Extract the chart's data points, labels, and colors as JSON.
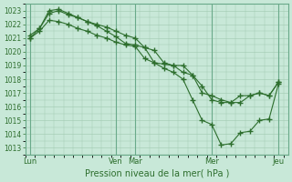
{
  "xlabel": "Pression niveau de la mer( hPa )",
  "bg_color": "#c8e8d8",
  "grid_color": "#a0c8b0",
  "line_color": "#2d6e2d",
  "ylim": [
    1012.5,
    1023.5
  ],
  "yticks": [
    1013,
    1014,
    1015,
    1016,
    1017,
    1018,
    1019,
    1020,
    1021,
    1022,
    1023
  ],
  "xtick_labels": [
    "Lun",
    "Ven",
    "Mar",
    "Mer",
    "Jeu"
  ],
  "xtick_positions": [
    0,
    9,
    11,
    19,
    26
  ],
  "vline_positions": [
    0,
    9,
    11,
    19,
    26
  ],
  "xlim": [
    -0.5,
    27
  ],
  "line1_x": [
    0,
    1,
    2,
    3,
    4,
    5,
    6,
    7,
    8,
    9,
    10,
    11,
    12,
    13,
    14,
    15,
    16,
    17,
    18,
    19,
    20,
    21,
    22,
    23,
    24,
    25,
    26
  ],
  "line1_y": [
    1021.2,
    1021.7,
    1022.8,
    1023.0,
    1022.7,
    1022.5,
    1022.2,
    1022.0,
    1021.8,
    1021.5,
    1021.2,
    1021.0,
    1020.3,
    1020.1,
    1019.2,
    1019.0,
    1019.0,
    1018.3,
    1017.5,
    1016.5,
    1016.3,
    1016.3,
    1016.8,
    1016.8,
    1017.0,
    1016.8,
    1017.8
  ],
  "line2_x": [
    0,
    1,
    2,
    3,
    4,
    5,
    6,
    7,
    8,
    9,
    10,
    11,
    12,
    13,
    14,
    15,
    16,
    17,
    18,
    19,
    20,
    21,
    22,
    23,
    24,
    25,
    26
  ],
  "line2_y": [
    1021.0,
    1021.7,
    1023.0,
    1023.1,
    1022.8,
    1022.5,
    1022.2,
    1021.9,
    1021.5,
    1021.1,
    1020.6,
    1020.5,
    1020.3,
    1019.2,
    1019.1,
    1019.0,
    1018.5,
    1018.3,
    1017.0,
    1016.8,
    1016.5,
    1016.3,
    1016.3,
    1016.8,
    1017.0,
    1016.8,
    1017.8
  ],
  "line3_x": [
    0,
    1,
    2,
    3,
    4,
    5,
    6,
    7,
    8,
    9,
    10,
    11,
    12,
    13,
    14,
    15,
    16,
    17,
    18,
    19,
    20,
    21,
    22,
    23,
    24,
    25,
    26
  ],
  "line3_y": [
    1021.0,
    1021.5,
    1022.3,
    1022.2,
    1022.0,
    1021.7,
    1021.5,
    1021.2,
    1021.0,
    1020.7,
    1020.5,
    1020.4,
    1019.5,
    1019.2,
    1018.8,
    1018.5,
    1018.0,
    1016.5,
    1015.0,
    1014.7,
    1013.2,
    1013.3,
    1014.1,
    1014.2,
    1015.0,
    1015.1,
    1017.7
  ],
  "marker": "+",
  "marker_size": 4,
  "linewidth": 0.8
}
